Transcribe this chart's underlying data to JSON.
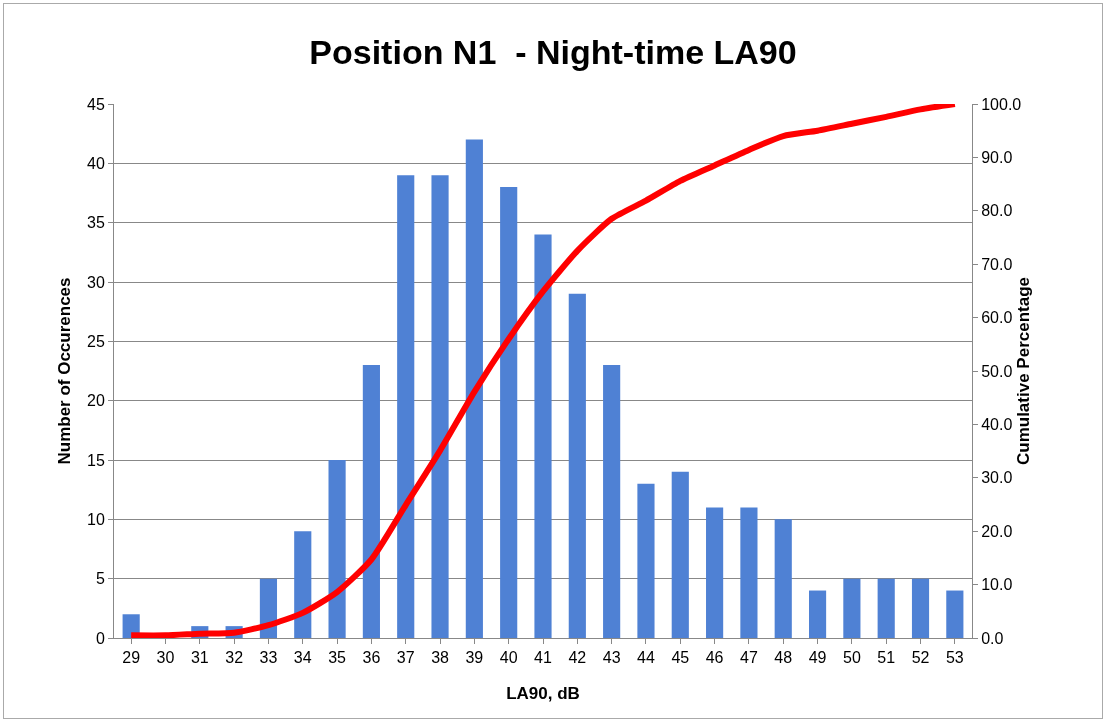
{
  "chart_data": {
    "type": "bar",
    "title": "Position N1  - Night-time LA90",
    "xlabel": "LA90, dB",
    "ylabel": "Number of Occurences",
    "y2label": "Cumulative Percentage",
    "categories": [
      "29",
      "30",
      "31",
      "32",
      "33",
      "34",
      "35",
      "36",
      "37",
      "38",
      "39",
      "40",
      "41",
      "42",
      "43",
      "44",
      "45",
      "46",
      "47",
      "48",
      "49",
      "50",
      "51",
      "52",
      "53"
    ],
    "series": [
      {
        "color": "#4f81d4",
        "values": [
          2,
          0,
          1,
          1,
          5,
          9,
          15,
          23,
          39,
          39,
          42,
          38,
          34,
          29,
          23,
          13,
          14,
          11,
          11,
          10,
          4,
          5,
          5,
          5,
          4
        ]
      },
      {
        "type": "line",
        "axis": "y2",
        "color": "#ff0000",
        "values": [
          0.5,
          0.5,
          0.8,
          1.0,
          2.4,
          4.7,
          8.6,
          14.7,
          24.9,
          35.1,
          46.1,
          56.0,
          64.9,
          72.5,
          78.5,
          81.9,
          85.6,
          88.5,
          91.4,
          94.0,
          95.0,
          96.3,
          97.6,
          99.0,
          100.0
        ]
      }
    ],
    "ylim": [
      0,
      45
    ],
    "yticks": [
      0,
      5,
      10,
      15,
      20,
      25,
      30,
      35,
      40,
      45
    ],
    "y2lim": [
      0,
      100
    ],
    "y2ticks": [
      {
        "value": 0,
        "label": "0.0"
      },
      {
        "value": 10,
        "label": "10.0"
      },
      {
        "value": 20,
        "label": "20.0"
      },
      {
        "value": 30,
        "label": "30.0"
      },
      {
        "value": 40,
        "label": "40.0"
      },
      {
        "value": 50,
        "label": "50.0"
      },
      {
        "value": 60,
        "label": "60.0"
      },
      {
        "value": 70,
        "label": "70.0"
      },
      {
        "value": 80,
        "label": "80.0"
      },
      {
        "value": 90,
        "label": "90.0"
      },
      {
        "value": 100,
        "label": "100.0"
      }
    ],
    "grid": "y",
    "legend": false,
    "marker": "none",
    "line_style": "solid"
  }
}
